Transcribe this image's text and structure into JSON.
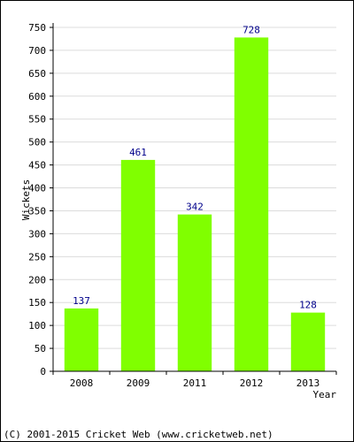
{
  "chart_data": {
    "type": "bar",
    "categories": [
      "2008",
      "2009",
      "2011",
      "2012",
      "2013"
    ],
    "values": [
      137,
      461,
      342,
      728,
      128
    ],
    "data_labels": [
      "137",
      "461",
      "342",
      "728",
      "128"
    ],
    "title": "",
    "xlabel": "Year",
    "ylabel": "Wickets",
    "ylim": [
      0,
      750
    ],
    "yticks": [
      0,
      50,
      100,
      150,
      200,
      250,
      300,
      350,
      400,
      450,
      500,
      550,
      600,
      650,
      700,
      750
    ],
    "grid": true,
    "bar_color": "#80ff00",
    "grid_color": "#dcdcdc",
    "label_color": "#00008b"
  },
  "footer": {
    "copyright": "(C) 2001-2015 Cricket Web (www.cricketweb.net)"
  }
}
